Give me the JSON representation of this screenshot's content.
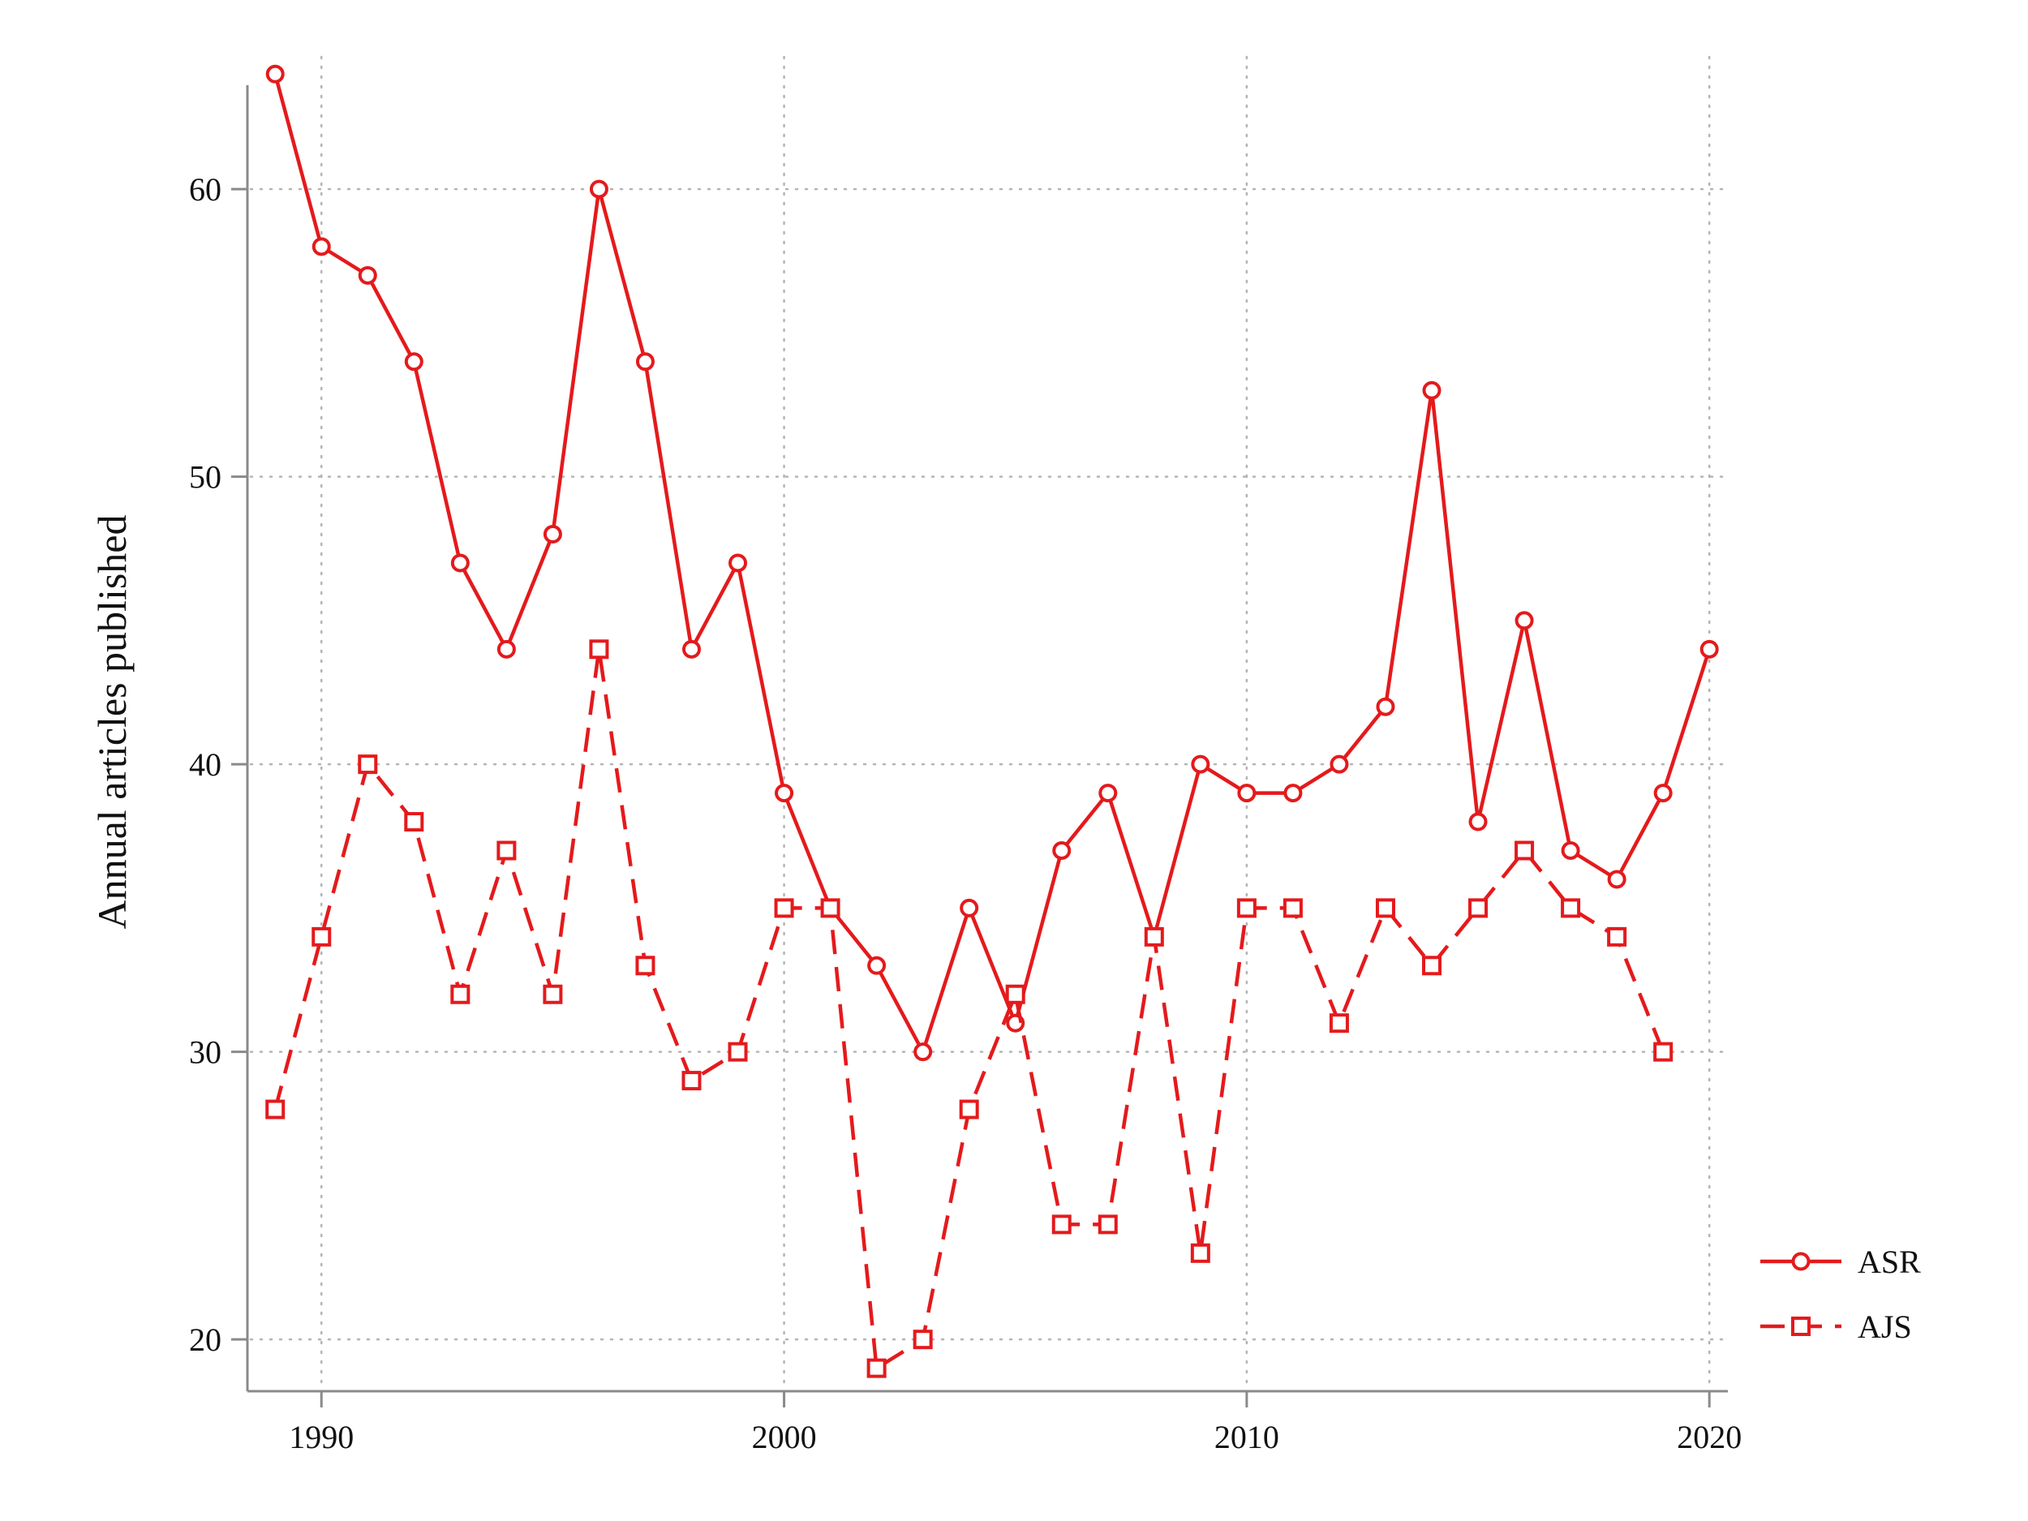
{
  "chart_data": {
    "type": "line",
    "title": "",
    "xlabel": "",
    "ylabel": "Annual articles published",
    "xlim": [
      1988.4,
      2020.4
    ],
    "ylim": [
      18.2,
      64.6
    ],
    "x_ticks": [
      1990,
      2000,
      2010,
      2020
    ],
    "y_ticks": [
      20,
      30,
      40,
      50,
      60
    ],
    "grid": true,
    "legend_position": "bottom-right",
    "color": "#e41a1c",
    "series": [
      {
        "name": "ASR",
        "marker": "circle",
        "line_style": "solid",
        "x": [
          1989,
          1990,
          1991,
          1992,
          1993,
          1994,
          1995,
          1996,
          1997,
          1998,
          1999,
          2000,
          2001,
          2002,
          2003,
          2004,
          2005,
          2006,
          2007,
          2008,
          2009,
          2010,
          2011,
          2012,
          2013,
          2014,
          2015,
          2016,
          2017,
          2018,
          2019,
          2020
        ],
        "values": [
          64,
          58,
          57,
          54,
          47,
          44,
          48,
          60,
          54,
          44,
          47,
          39,
          35,
          33,
          30,
          35,
          31,
          37,
          39,
          34,
          40,
          39,
          39,
          40,
          42,
          53,
          38,
          45,
          37,
          36,
          39,
          44
        ]
      },
      {
        "name": "AJS",
        "marker": "square",
        "line_style": "dashed",
        "x": [
          1989,
          1990,
          1991,
          1992,
          1993,
          1994,
          1995,
          1996,
          1997,
          1998,
          1999,
          2000,
          2001,
          2002,
          2003,
          2004,
          2005,
          2006,
          2007,
          2008,
          2009,
          2010,
          2011,
          2012,
          2013,
          2014,
          2015,
          2016,
          2017,
          2018,
          2019
        ],
        "values": [
          28,
          34,
          40,
          38,
          32,
          37,
          32,
          44,
          33,
          29,
          30,
          35,
          35,
          19,
          20,
          28,
          32,
          24,
          24,
          34,
          23,
          35,
          35,
          31,
          35,
          33,
          35,
          37,
          35,
          34,
          30
        ]
      }
    ]
  }
}
